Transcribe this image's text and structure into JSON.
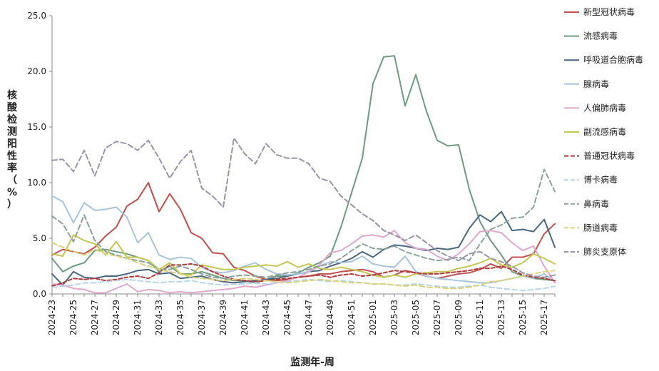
{
  "chart_data": {
    "type": "line",
    "xlabel": "监测年-周",
    "ylabel": "核酸检测阳性率（%）",
    "ylim": [
      0,
      25
    ],
    "yticks": [
      "0.0",
      "5.0",
      "10.0",
      "15.0",
      "20.0",
      "25.0"
    ],
    "grid": false,
    "legend_position": "right",
    "x": [
      "2024-23",
      "2024-24",
      "2024-25",
      "2024-26",
      "2024-27",
      "2024-28",
      "2024-29",
      "2024-30",
      "2024-31",
      "2024-32",
      "2024-33",
      "2024-34",
      "2024-35",
      "2024-36",
      "2024-37",
      "2024-38",
      "2024-39",
      "2024-40",
      "2024-41",
      "2024-42",
      "2024-43",
      "2024-44",
      "2024-45",
      "2024-46",
      "2024-47",
      "2024-48",
      "2024-49",
      "2024-50",
      "2024-51",
      "2024-52",
      "2025-01",
      "2025-02",
      "2025-03",
      "2025-04",
      "2025-05",
      "2025-06",
      "2025-07",
      "2025-08",
      "2025-09",
      "2025-10",
      "2025-11",
      "2025-12",
      "2025-13",
      "2025-14",
      "2025-15",
      "2025-16",
      "2025-17",
      "2025-18"
    ],
    "x_tick_labels": [
      "2024-23",
      "2024-25",
      "2024-27",
      "2024-29",
      "2024-31",
      "2024-33",
      "2024-35",
      "2024-37",
      "2024-39",
      "2024-41",
      "2024-43",
      "2024-45",
      "2024-47",
      "2024-49",
      "2024-51",
      "2025-01",
      "2025-03",
      "2025-05",
      "2025-07",
      "2025-09",
      "2025-11",
      "2025-13",
      "2025-15",
      "2025-17"
    ],
    "series": [
      {
        "name": "新型冠状病毒",
        "color": "#c0504d",
        "dash": "solid",
        "values": [
          3.5,
          4.0,
          3.8,
          3.6,
          4.2,
          5.2,
          6.0,
          7.9,
          8.5,
          10.0,
          7.4,
          9.0,
          7.6,
          5.5,
          5.0,
          3.7,
          3.6,
          2.4,
          2.1,
          1.6,
          1.3,
          1.2,
          1.3,
          1.5,
          1.6,
          1.8,
          1.8,
          2.0,
          2.1,
          2.2,
          2.0,
          1.5,
          1.7,
          2.1,
          1.9,
          1.6,
          1.4,
          1.6,
          1.8,
          1.9,
          2.2,
          2.7,
          2.3,
          3.3,
          3.3,
          3.6,
          5.4,
          6.3
        ]
      },
      {
        "name": "流感病毒",
        "color": "#6e9b7f",
        "dash": "solid",
        "values": [
          3.2,
          2.0,
          2.5,
          2.8,
          3.9,
          4.0,
          3.8,
          3.6,
          3.3,
          3.0,
          2.0,
          2.5,
          1.8,
          1.8,
          2.0,
          1.7,
          1.4,
          1.2,
          1.2,
          1.0,
          1.3,
          1.6,
          1.6,
          1.9,
          2.4,
          2.8,
          3.4,
          6.0,
          9.1,
          12.2,
          18.9,
          21.3,
          21.4,
          16.9,
          19.7,
          16.4,
          13.8,
          13.3,
          13.4,
          9.4,
          6.5,
          4.8,
          3.5,
          2.0,
          1.6,
          1.4,
          1.3,
          1.2
        ]
      },
      {
        "name": "呼吸道合胞病毒",
        "color": "#4a6781",
        "dash": "solid",
        "values": [
          1.8,
          0.8,
          2.0,
          1.5,
          1.4,
          1.6,
          1.6,
          1.8,
          2.1,
          2.2,
          1.8,
          1.9,
          1.4,
          1.5,
          1.6,
          1.3,
          1.1,
          1.0,
          1.1,
          1.2,
          1.3,
          1.4,
          1.6,
          1.8,
          2.0,
          2.1,
          2.5,
          2.8,
          3.2,
          3.8,
          3.3,
          4.0,
          4.4,
          4.3,
          4.1,
          3.9,
          4.1,
          4.0,
          4.2,
          5.9,
          7.1,
          6.5,
          7.4,
          5.7,
          5.8,
          5.6,
          6.7,
          4.2
        ]
      },
      {
        "name": "腺病毒",
        "color": "#a7c4dc",
        "dash": "solid",
        "values": [
          8.8,
          8.3,
          6.4,
          8.2,
          7.5,
          7.6,
          7.8,
          6.9,
          4.6,
          5.5,
          3.5,
          3.1,
          3.3,
          3.2,
          2.4,
          2.0,
          1.9,
          2.1,
          2.5,
          2.8,
          2.2,
          1.8,
          1.7,
          1.8,
          2.0,
          2.5,
          2.9,
          2.8,
          2.9,
          3.4,
          2.7,
          2.5,
          2.4,
          3.4,
          2.0,
          1.6,
          1.4,
          1.3,
          1.2,
          1.1,
          1.0,
          1.0,
          1.2,
          1.4,
          1.6,
          1.4,
          1.8,
          1.1
        ]
      },
      {
        "name": "人偏肺病毒",
        "color": "#e0a7cd",
        "dash": "solid",
        "values": [
          0.9,
          0.8,
          0.5,
          0.4,
          0.1,
          0.1,
          0.5,
          0.9,
          0.2,
          0.4,
          0.3,
          0.1,
          0.2,
          0.1,
          0.2,
          0.3,
          0.4,
          0.5,
          0.7,
          0.6,
          0.8,
          1.0,
          1.2,
          1.5,
          2.0,
          2.6,
          3.7,
          3.9,
          4.5,
          5.2,
          5.3,
          5.1,
          5.7,
          4.6,
          4.1,
          4.0,
          3.4,
          3.0,
          3.6,
          4.5,
          5.6,
          5.7,
          5.5,
          4.6,
          3.9,
          4.3,
          2.5,
          1.0
        ]
      },
      {
        "name": "副流感病毒",
        "color": "#c4c650",
        "dash": "solid",
        "values": [
          3.6,
          3.4,
          5.3,
          4.8,
          4.5,
          3.5,
          4.7,
          3.3,
          3.3,
          3.0,
          2.2,
          2.8,
          1.8,
          1.7,
          2.6,
          2.4,
          2.2,
          2.2,
          2.4,
          2.5,
          2.6,
          2.5,
          2.9,
          2.4,
          2.7,
          2.3,
          2.2,
          2.4,
          2.2,
          2.0,
          1.7,
          1.5,
          1.7,
          1.5,
          1.8,
          1.9,
          2.0,
          2.0,
          2.3,
          2.5,
          2.8,
          3.2,
          2.6,
          2.4,
          2.8,
          3.6,
          3.2,
          2.7
        ]
      },
      {
        "name": "普通冠状病毒",
        "color": "#b03a3a",
        "dash": "5,3",
        "values": [
          0.7,
          1.0,
          1.4,
          1.3,
          1.4,
          1.2,
          1.3,
          1.5,
          1.6,
          1.4,
          1.9,
          2.6,
          2.6,
          2.7,
          2.5,
          2.0,
          1.6,
          1.3,
          1.2,
          1.1,
          1.2,
          1.3,
          1.4,
          1.5,
          1.6,
          1.7,
          1.5,
          1.7,
          1.8,
          1.6,
          1.7,
          1.9,
          2.1,
          2.0,
          1.9,
          1.8,
          1.8,
          1.9,
          2.0,
          2.1,
          2.3,
          2.3,
          2.5,
          2.2,
          1.7,
          1.5,
          1.4,
          1.2
        ]
      },
      {
        "name": "博卡病毒",
        "color": "#b7d5e8",
        "dash": "7,4",
        "values": [
          0.6,
          0.7,
          0.8,
          1.0,
          1.0,
          1.1,
          1.2,
          1.3,
          1.2,
          1.1,
          1.0,
          1.1,
          1.1,
          1.2,
          1.0,
          0.9,
          0.8,
          0.9,
          0.9,
          1.0,
          0.9,
          1.0,
          1.1,
          1.2,
          1.3,
          1.2,
          1.1,
          1.2,
          1.1,
          1.0,
          0.9,
          0.9,
          0.8,
          0.8,
          0.9,
          0.8,
          0.7,
          0.6,
          0.6,
          0.7,
          0.8,
          0.6,
          0.5,
          0.4,
          0.3,
          0.4,
          0.5,
          0.7
        ]
      },
      {
        "name": "鼻病毒",
        "color": "#8aa19a",
        "dash": "7,4",
        "values": [
          7.0,
          6.3,
          4.7,
          7.1,
          4.8,
          3.8,
          3.5,
          3.2,
          3.0,
          2.8,
          2.2,
          2.2,
          2.5,
          2.2,
          1.8,
          1.5,
          1.4,
          1.6,
          1.7,
          1.6,
          1.5,
          1.7,
          1.9,
          2.0,
          2.2,
          2.5,
          2.7,
          3.2,
          3.9,
          4.5,
          4.1,
          4.0,
          4.3,
          3.8,
          3.5,
          3.2,
          3.0,
          3.1,
          3.3,
          3.0,
          4.5,
          5.8,
          6.2,
          6.8,
          6.9,
          7.8,
          11.2,
          9.2
        ]
      },
      {
        "name": "肠道病毒",
        "color": "#ddd17a",
        "dash": "7,4",
        "values": [
          4.6,
          4.2,
          3.8,
          3.5,
          4.0,
          3.6,
          3.4,
          3.2,
          2.8,
          2.5,
          2.2,
          2.0,
          1.8,
          1.5,
          1.4,
          1.3,
          1.2,
          1.3,
          1.4,
          1.3,
          1.2,
          1.1,
          1.0,
          1.1,
          1.2,
          1.3,
          1.2,
          1.1,
          1.0,
          1.0,
          0.9,
          0.9,
          0.8,
          0.7,
          0.8,
          0.6,
          0.6,
          0.5,
          0.5,
          0.6,
          0.8,
          1.1,
          1.2,
          1.4,
          1.6,
          1.8,
          2.0,
          2.1
        ]
      },
      {
        "name": "肺炎支原体",
        "color": "#9a93a8",
        "dash": "7,4",
        "values": [
          12.0,
          12.1,
          11.0,
          12.9,
          10.6,
          13.1,
          13.7,
          13.5,
          12.9,
          13.8,
          12.2,
          10.4,
          11.9,
          12.9,
          9.5,
          8.8,
          7.8,
          14.0,
          12.6,
          11.7,
          13.5,
          12.5,
          12.2,
          12.2,
          11.7,
          10.4,
          10.1,
          8.8,
          8.0,
          7.2,
          6.6,
          5.7,
          5.3,
          4.8,
          5.3,
          4.6,
          3.9,
          3.4,
          3.0,
          3.6,
          3.8,
          3.2,
          2.9,
          2.5,
          1.9,
          1.6,
          1.5,
          1.7
        ]
      }
    ]
  }
}
